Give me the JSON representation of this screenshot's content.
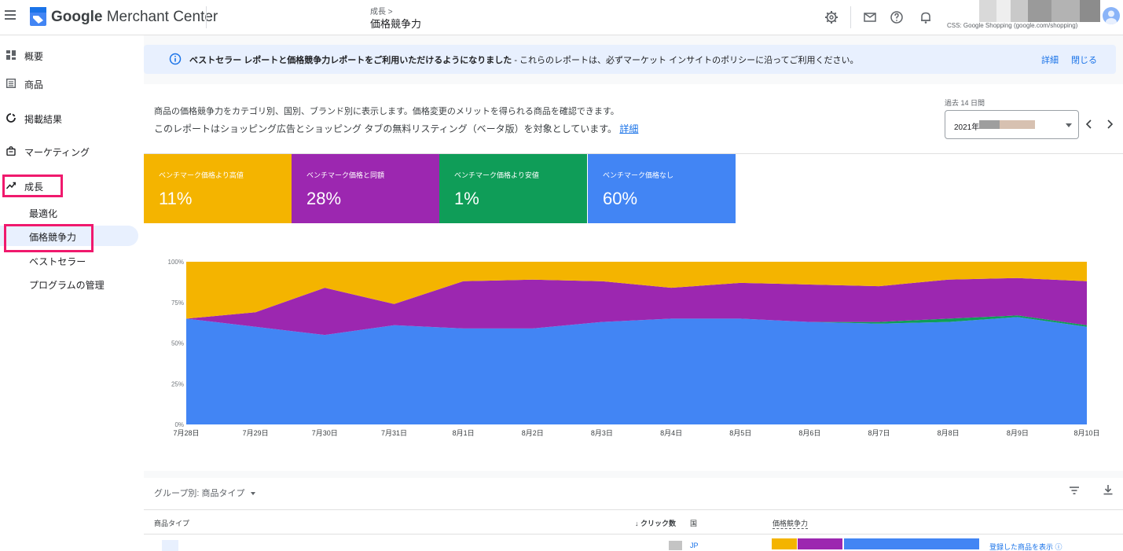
{
  "header": {
    "brand_google": "Google",
    "brand_product": " Merchant Center",
    "breadcrumb": "成長 >",
    "page_title": "価格競争力",
    "account_label": "CSS: Google Shopping (google.com/shopping)",
    "icons": [
      "menu-icon",
      "merchant-center-logo",
      "settings-icon",
      "mail-icon",
      "help-icon",
      "notifications-icon",
      "avatar"
    ]
  },
  "sidebar": {
    "items": [
      {
        "label": "概要",
        "icon": "dashboard-icon"
      },
      {
        "label": "商品",
        "icon": "products-icon"
      },
      {
        "label": "掲載結果",
        "icon": "performance-icon"
      },
      {
        "label": "マーケティング",
        "icon": "marketing-icon"
      },
      {
        "label": "成長",
        "icon": "growth-icon"
      }
    ],
    "subitems": [
      {
        "label": "最適化"
      },
      {
        "label": "価格競争力",
        "active": true
      },
      {
        "label": "ベストセラー"
      },
      {
        "label": "プログラムの管理"
      }
    ]
  },
  "banner": {
    "bold_text": "ベストセラー レポートと価格競争力レポートをご利用いただけるようになりました",
    "text": " - これらのレポートは、必ずマーケット インサイトのポリシーに沿ってご利用ください。",
    "details_link": "詳細",
    "close_link": "閉じる"
  },
  "report": {
    "description_1": "商品の価格競争力をカテゴリ別、国別、ブランド別に表示します。価格変更のメリットを得られる商品を確認できます。",
    "description_2": "このレポートはショッピング広告とショッピング タブの無料リスティング（ベータ版）を対象としています。",
    "description_link": "詳細",
    "period_label": "過去 14 日間",
    "date_value": "2021年",
    "tiles": [
      {
        "label": "ベンチマーク価格より高値",
        "value": "11%",
        "color": "#f4b400"
      },
      {
        "label": "ベンチマーク価格と同額",
        "value": "28%",
        "color": "#9c27b0"
      },
      {
        "label": "ベンチマーク価格より安値",
        "value": "1%",
        "color": "#0f9d58"
      },
      {
        "label": "ベンチマーク価格なし",
        "value": "60%",
        "color": "#4285f4"
      }
    ]
  },
  "chart_data": {
    "type": "area",
    "stacked": true,
    "x": [
      "7月28日",
      "7月29日",
      "7月30日",
      "7月31日",
      "8月1日",
      "8月2日",
      "8月3日",
      "8月4日",
      "8月5日",
      "8月6日",
      "8月7日",
      "8月8日",
      "8月9日",
      "8月10日"
    ],
    "yticks": [
      "0%",
      "25%",
      "50%",
      "75%",
      "100%"
    ],
    "ylim": [
      0,
      100
    ],
    "grid": false,
    "series": [
      {
        "color": "#4285f4",
        "values": [
          65,
          60,
          55,
          61,
          59,
          59,
          63,
          65,
          65,
          63,
          62,
          63,
          66,
          60
        ]
      },
      {
        "color": "#0f9d58",
        "values": [
          0,
          0,
          0,
          0,
          0,
          0,
          0,
          0,
          0,
          0,
          1,
          2,
          1,
          1
        ]
      },
      {
        "color": "#9c27b0",
        "values": [
          0,
          9,
          29,
          13,
          29,
          30,
          25,
          19,
          22,
          23,
          22,
          24,
          23,
          27
        ]
      },
      {
        "color": "#f4b400",
        "values": [
          35,
          31,
          16,
          26,
          12,
          11,
          12,
          16,
          13,
          14,
          15,
          11,
          10,
          12
        ]
      }
    ]
  },
  "table": {
    "group_by_label": "グループ別: 商品タイプ",
    "columns": [
      "商品タイプ",
      "↓ クリック数",
      "国",
      "価格競争力"
    ],
    "rows": [
      {
        "country": "JP",
        "link": "登録した商品を表示"
      }
    ]
  }
}
